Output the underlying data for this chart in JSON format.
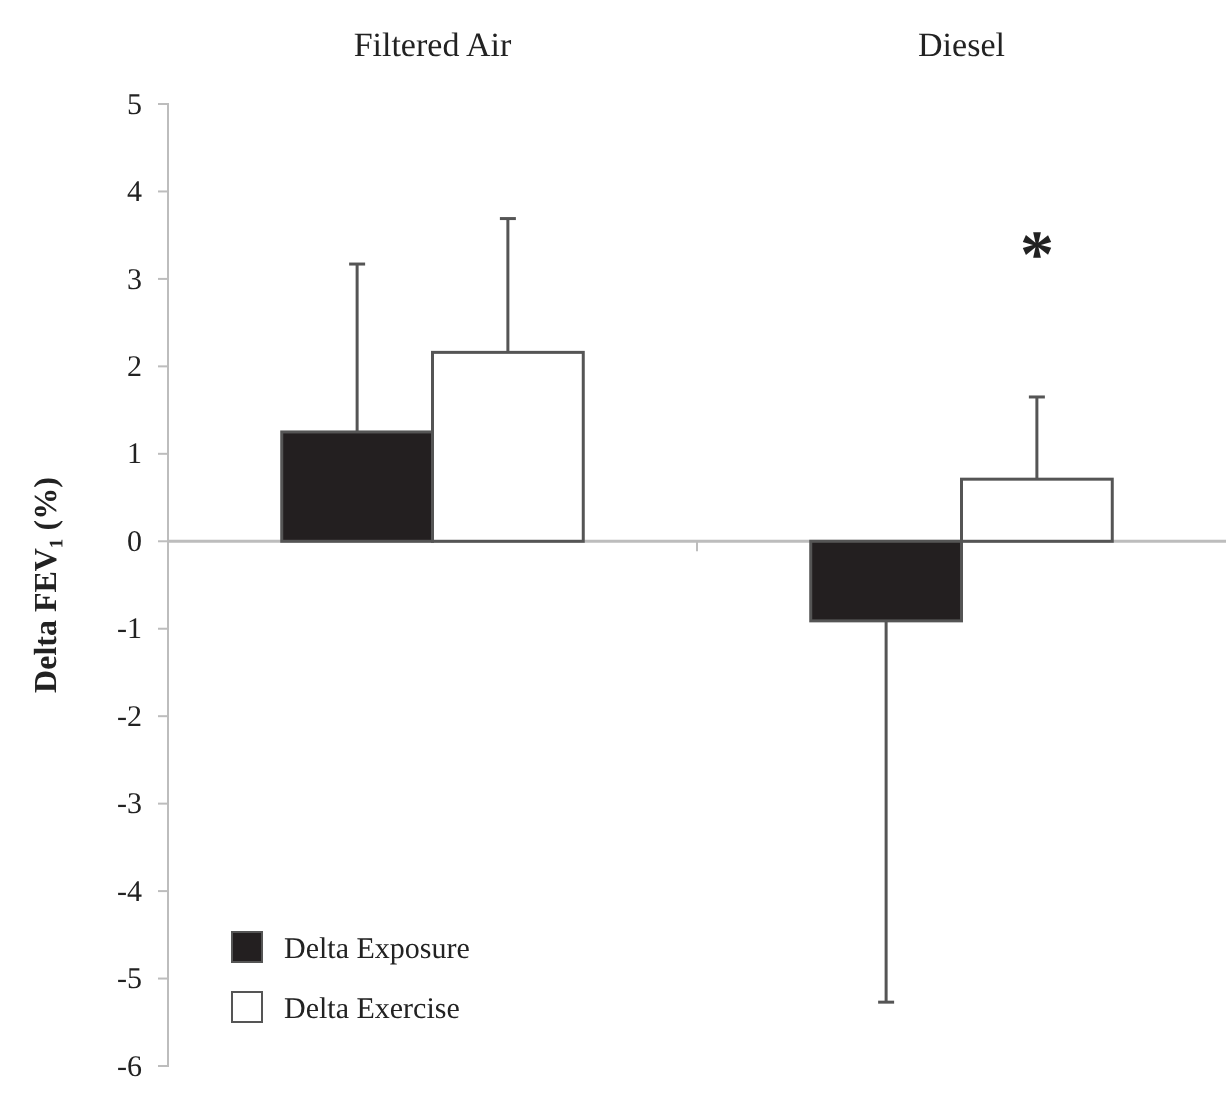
{
  "chart_data": {
    "type": "bar",
    "ylabel": "Delta FEV₁ (%)",
    "categories": [
      "Filtered Air",
      "Diesel"
    ],
    "series": [
      {
        "name": "Delta Exposure",
        "color": "#231f20",
        "values": [
          1.25,
          -0.91
        ],
        "errors": [
          [
            1.25,
            3.17
          ],
          [
            -5.27,
            -0.91
          ]
        ]
      },
      {
        "name": "Delta Exercise",
        "color": "#ffffff",
        "values": [
          2.16,
          0.71
        ],
        "errors": [
          [
            2.16,
            3.69
          ],
          [
            0.71,
            1.65
          ]
        ]
      }
    ],
    "ylim": [
      -6,
      5
    ],
    "yticks": [
      -6,
      -5,
      -4,
      -3,
      -2,
      -1,
      0,
      1,
      2,
      3,
      4,
      5
    ],
    "legend": "bottom left",
    "annotations": [
      "*"
    ]
  }
}
